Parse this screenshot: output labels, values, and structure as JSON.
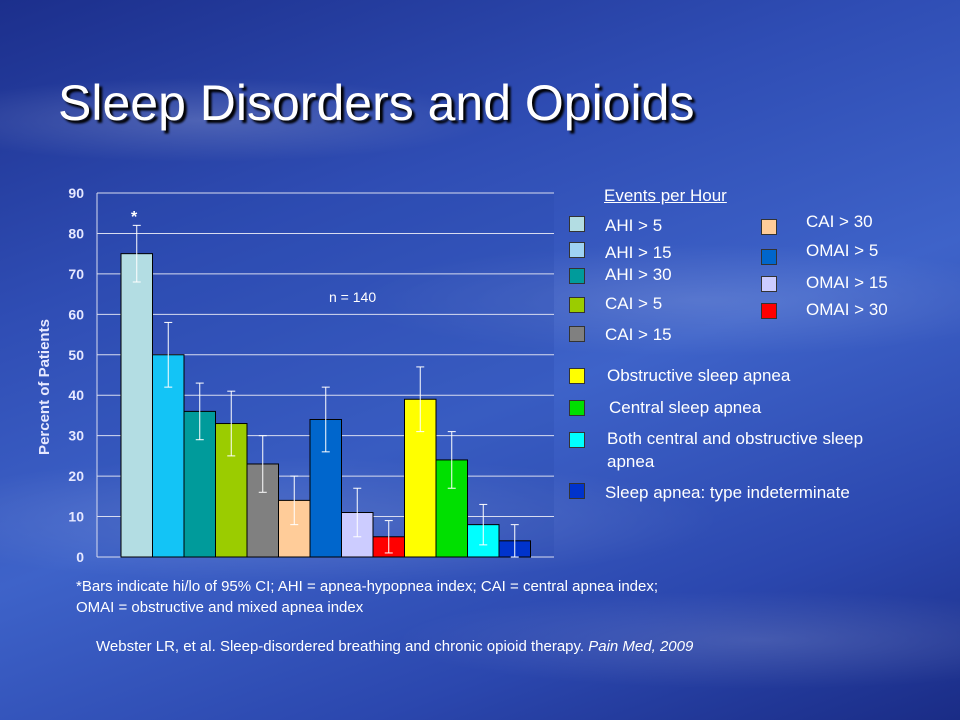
{
  "title": "Sleep Disorders and Opioids",
  "chart_data": {
    "type": "bar",
    "ylabel": "Percent of Patients",
    "ylim": [
      0,
      90
    ],
    "yticks": [
      0,
      10,
      20,
      30,
      40,
      50,
      60,
      70,
      80,
      90
    ],
    "annotation": "n = 140",
    "asterisk": "*",
    "grid": true,
    "series": [
      {
        "name": "AHI > 5",
        "value": 75,
        "ci": [
          68,
          82
        ],
        "color": "#b3dde3"
      },
      {
        "name": "AHI > 15",
        "value": 50,
        "ci": [
          42,
          58
        ],
        "color": "#13c4f6"
      },
      {
        "name": "AHI > 30",
        "value": 36,
        "ci": [
          29,
          43
        ],
        "color": "#009b9b"
      },
      {
        "name": "CAI > 5",
        "value": 33,
        "ci": [
          25,
          41
        ],
        "color": "#9bcc00"
      },
      {
        "name": "CAI > 15",
        "value": 23,
        "ci": [
          16,
          30
        ],
        "color": "#808080"
      },
      {
        "name": "CAI > 30",
        "value": 14,
        "ci": [
          8,
          20
        ],
        "color": "#ffcc99"
      },
      {
        "name": "OMAI > 5",
        "value": 34,
        "ci": [
          26,
          42
        ],
        "color": "#0066cc"
      },
      {
        "name": "OMAI > 15",
        "value": 11,
        "ci": [
          5,
          17
        ],
        "color": "#ccccff"
      },
      {
        "name": "OMAI > 30",
        "value": 5,
        "ci": [
          1,
          9
        ],
        "color": "#ff0000"
      },
      {
        "name": "Obstructive sleep apnea",
        "value": 39,
        "ci": [
          31,
          47
        ],
        "color": "#ffff00"
      },
      {
        "name": "Central sleep apnea",
        "value": 24,
        "ci": [
          17,
          31
        ],
        "color": "#00e000"
      },
      {
        "name": "Both central and obstructive sleep apnea",
        "value": 8,
        "ci": [
          3,
          13
        ],
        "color": "#00ffff"
      },
      {
        "name": "Sleep apnea: type indeterminate",
        "value": 4,
        "ci": [
          0,
          8
        ],
        "color": "#0033cc"
      }
    ]
  },
  "legend": {
    "heading": "Events per Hour",
    "col1": [
      "AHI > 5",
      "AHI > 15",
      "AHI > 30",
      "CAI > 5",
      "CAI > 15"
    ],
    "col2": [
      "CAI > 30",
      "OMAI > 5",
      "OMAI > 15",
      "OMAI > 30"
    ],
    "apnea": [
      "Obstructive sleep apnea",
      "Central sleep apnea",
      "Both central and obstructive sleep apnea",
      "Sleep apnea: type indeterminate"
    ]
  },
  "footnote": {
    "line1": "*Bars indicate hi/lo of 95% CI; AHI = apnea-hypopnea index; CAI = central apnea index;",
    "line2": "OMAI = obstructive and mixed apnea index"
  },
  "citation": {
    "text": "Webster LR, et al. Sleep-disordered breathing and chronic opioid therapy. ",
    "journal": "Pain Med, 2009"
  }
}
